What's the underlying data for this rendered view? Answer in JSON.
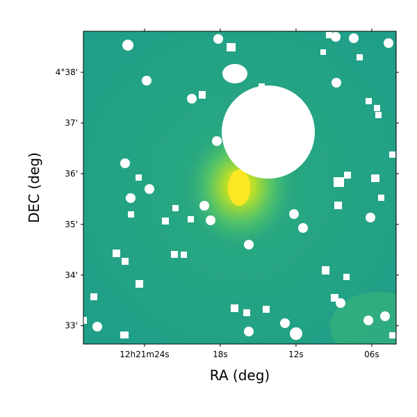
{
  "chart_data": {
    "type": "image",
    "xlabel": "RA (deg)",
    "ylabel": "DEC (deg)",
    "xlim": [
      28.84,
      4.07
    ],
    "xticks": [
      {
        "value": 24,
        "label": "12h21m24s"
      },
      {
        "value": 18,
        "label": "18s"
      },
      {
        "value": 12,
        "label": "12s"
      },
      {
        "value": 6,
        "label": "06s"
      }
    ],
    "ylim": [
      32.64,
      38.81
    ],
    "yticks": [
      {
        "value": 38,
        "label": "4°38'"
      },
      {
        "value": 37,
        "label": "37'"
      },
      {
        "value": 36,
        "label": "36'"
      },
      {
        "value": 35,
        "label": "35'"
      },
      {
        "value": 34,
        "label": "34'"
      },
      {
        "value": 33,
        "label": "33'"
      }
    ]
  }
}
